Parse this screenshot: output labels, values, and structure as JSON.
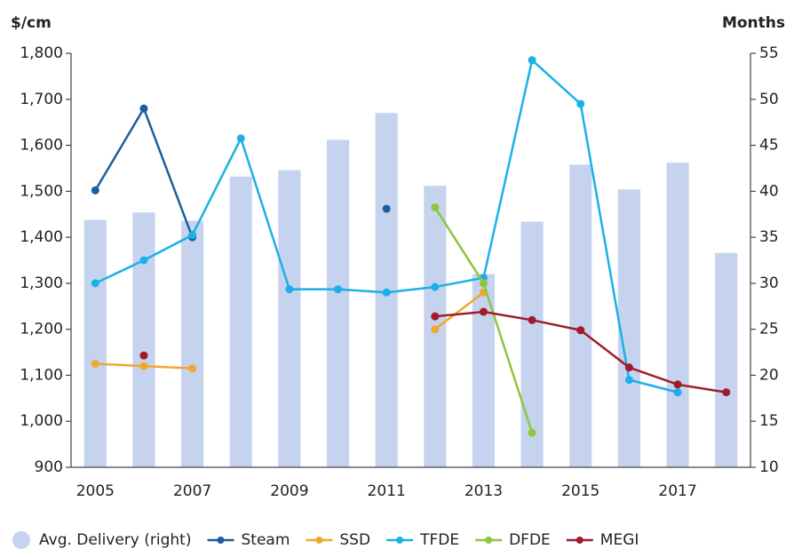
{
  "chart_data": {
    "type": "combo",
    "y_label": "$/cm",
    "y2_label": "Months",
    "categories": [
      "2005",
      null,
      "2007",
      null,
      "2009",
      null,
      "2011",
      null,
      "2013",
      null,
      "2015",
      null,
      "2017",
      null
    ],
    "ylim": [
      900,
      1800
    ],
    "yticks": [
      900,
      {
        "value": 1000,
        "label": "1,000"
      },
      {
        "value": 1100,
        "label": "1,100"
      },
      {
        "value": 1200,
        "label": "1,200"
      },
      {
        "value": 1300,
        "label": "1,300"
      },
      {
        "value": 1400,
        "label": "1,400"
      },
      {
        "value": 1500,
        "label": "1,500"
      },
      {
        "value": 1600,
        "label": "1,600"
      },
      {
        "value": 1700,
        "label": "1,700"
      },
      {
        "value": 1800,
        "label": "1,800"
      }
    ],
    "y2lim": [
      10,
      55
    ],
    "y2ticks": [
      10,
      15,
      20,
      25,
      30,
      35,
      40,
      45,
      50,
      55
    ],
    "series": [
      {
        "name": "Avg. Delivery (right)",
        "type": "bar",
        "axis": "y2",
        "color": "#c5d3ee",
        "values": [
          36.9,
          37.7,
          36.8,
          41.6,
          42.3,
          45.6,
          48.5,
          40.6,
          31,
          36.7,
          42.9,
          40.2,
          43.1,
          33.3
        ]
      },
      {
        "name": "Steam",
        "type": "line",
        "color": "#1a5fa0",
        "values": [
          1502,
          1680,
          1400,
          null,
          null,
          null,
          1462,
          null,
          null,
          null,
          null,
          null,
          null,
          null
        ]
      },
      {
        "name": "SSD",
        "type": "line",
        "color": "#f0a830",
        "values": [
          1125,
          1120,
          1115,
          null,
          null,
          null,
          null,
          1200,
          1280,
          null,
          null,
          null,
          null,
          null
        ]
      },
      {
        "name": "TFDE",
        "type": "line",
        "color": "#1ab0e8",
        "values": [
          1300,
          1350,
          1405,
          1615,
          1287,
          1287,
          1280,
          1292,
          1312,
          1785,
          1690,
          1090,
          1063,
          null
        ]
      },
      {
        "name": "DFDE",
        "type": "line",
        "color": "#8cc63f",
        "values": [
          null,
          null,
          null,
          null,
          null,
          null,
          null,
          1465,
          1300,
          975,
          null,
          null,
          null,
          null
        ]
      },
      {
        "name": "MEGI",
        "type": "line",
        "color": "#a01c2a",
        "values": [
          null,
          1143,
          null,
          null,
          null,
          null,
          null,
          1228,
          1238,
          1220,
          1198,
          1117,
          1080,
          1063
        ]
      }
    ]
  }
}
